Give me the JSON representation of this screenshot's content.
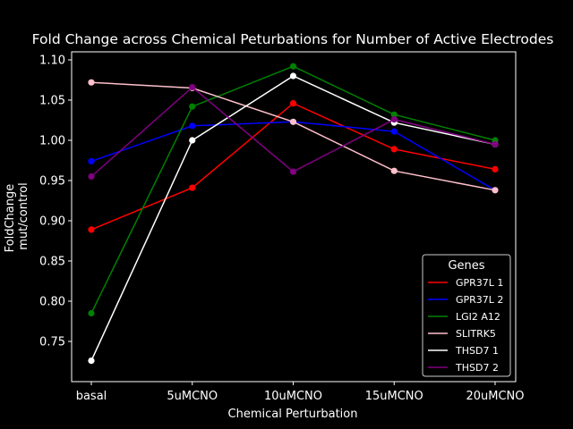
{
  "chart_data": {
    "type": "line",
    "title": "Fold Change across Chemical Peturbations for Number of Active Electrodes",
    "xlabel": "Chemical Perturbation",
    "ylabel_lines": [
      "FoldChange",
      "mut/control"
    ],
    "categories": [
      "basal",
      "5uMCNO",
      "10uMCNO",
      "15uMCNO",
      "20uMCNO"
    ],
    "ylim": [
      0.7,
      1.11
    ],
    "yticks": [
      "0.75",
      "0.80",
      "0.85",
      "0.90",
      "0.95",
      "1.00",
      "1.05",
      "1.10"
    ],
    "grid": false,
    "legend": {
      "title": "Genes",
      "position": "bottom-right"
    },
    "series": [
      {
        "name": "GPR37L 1",
        "color": "#ff0000",
        "values": [
          0.889,
          0.941,
          1.046,
          0.989,
          0.964
        ]
      },
      {
        "name": "GPR37L 2",
        "color": "#0000ff",
        "values": [
          0.974,
          1.018,
          1.023,
          1.011,
          0.938
        ]
      },
      {
        "name": "LGI2 A12",
        "color": "#008000",
        "values": [
          0.785,
          1.042,
          1.092,
          1.032,
          1.0
        ]
      },
      {
        "name": "SLITRK5",
        "color": "#ffc0cb",
        "values": [
          1.072,
          1.065,
          1.023,
          0.962,
          0.938
        ]
      },
      {
        "name": "THSD7 1",
        "color": "#ffffff",
        "values": [
          0.726,
          1.0,
          1.08,
          1.022,
          0.995
        ]
      },
      {
        "name": "THSD7 2",
        "color": "#800080",
        "values": [
          0.955,
          1.066,
          0.961,
          1.026,
          0.995
        ]
      }
    ]
  }
}
